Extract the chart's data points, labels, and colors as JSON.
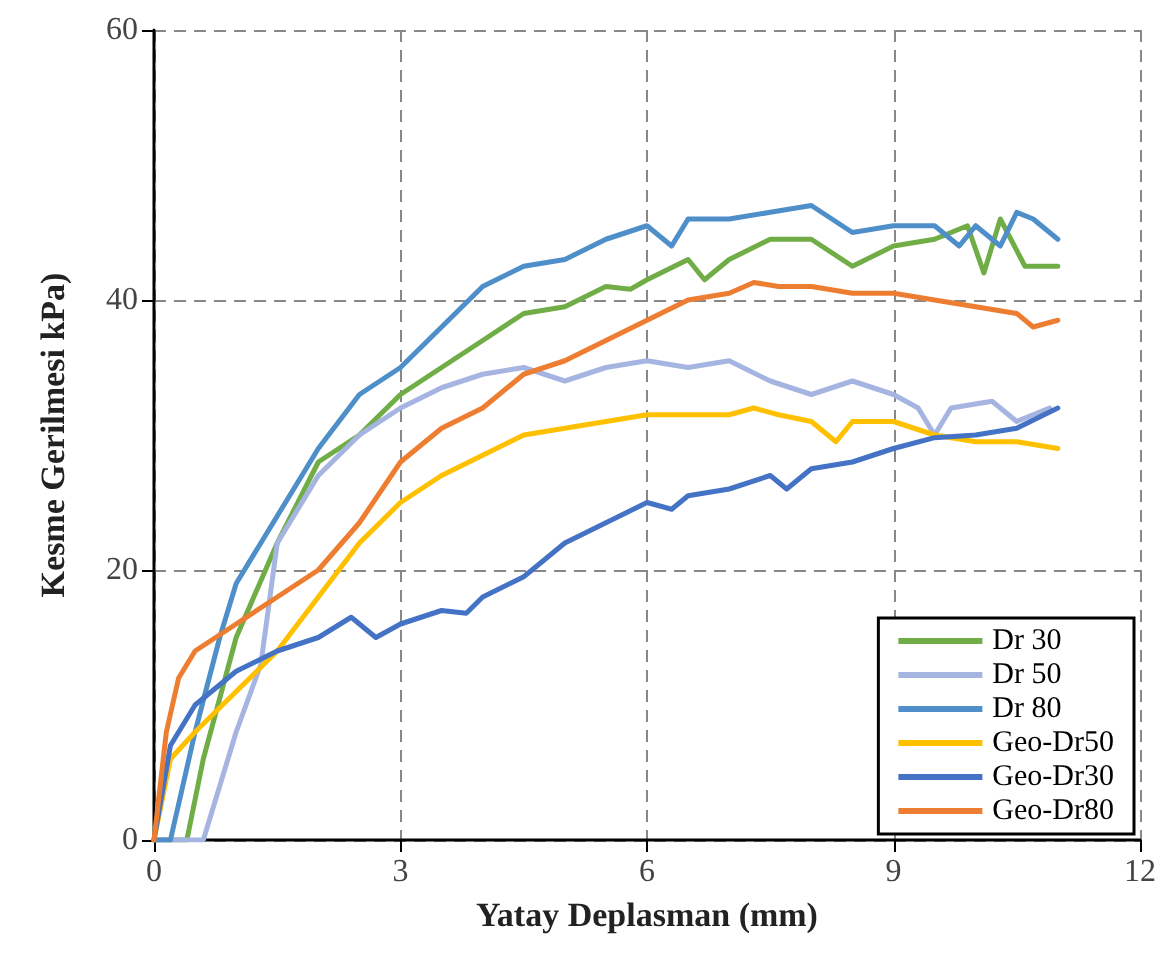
{
  "chart_data": {
    "type": "line",
    "xlabel": "Yatay Deplasman (mm)",
    "ylabel": "Kesme Gerilmesi kPa)",
    "xlim": [
      0,
      12
    ],
    "xticks": [
      0,
      3,
      6,
      9,
      12
    ],
    "ylim": [
      0,
      60
    ],
    "yticks": [
      0,
      20,
      40,
      60
    ],
    "grid": true,
    "legend": "bottom right",
    "marker": "none",
    "line_style": "solid",
    "series": [
      {
        "name": "Dr 30",
        "color": "#70ad47",
        "x": [
          0,
          0.4,
          0.6,
          1,
          1.5,
          2,
          2.5,
          3,
          3.5,
          4,
          4.5,
          5,
          5.5,
          5.8,
          6,
          6.5,
          6.7,
          7,
          7.5,
          8,
          8.5,
          9,
          9.5,
          9.9,
          10.1,
          10.3,
          10.6,
          11
        ],
        "values": [
          0,
          0,
          6,
          15,
          22,
          28,
          30,
          33,
          35,
          37,
          39,
          39.5,
          41,
          40.8,
          41.5,
          43,
          41.5,
          43,
          44.5,
          44.5,
          42.5,
          44,
          44.5,
          45.5,
          42,
          46,
          42.5,
          42.5
        ]
      },
      {
        "name": "Dr 50",
        "color": "#a5b4e0",
        "x": [
          0,
          0.6,
          1,
          1.3,
          1.5,
          2,
          2.5,
          3,
          3.5,
          4,
          4.5,
          5,
          5.5,
          6,
          6.5,
          7,
          7.5,
          8,
          8.5,
          9,
          9.3,
          9.5,
          9.7,
          10.2,
          10.5,
          10.9
        ],
        "values": [
          0,
          0,
          8,
          13,
          22,
          27,
          30,
          32,
          33.5,
          34.5,
          35,
          34,
          35,
          35.5,
          35,
          35.5,
          34,
          33,
          34,
          33,
          32,
          30,
          32,
          32.5,
          31,
          32
        ]
      },
      {
        "name": "Dr 80",
        "color": "#4e8fc9",
        "x": [
          0,
          0.2,
          0.5,
          0.8,
          1,
          1.5,
          2,
          2.5,
          3,
          3.5,
          4,
          4.5,
          5,
          5.5,
          6,
          6.3,
          6.5,
          7,
          7.5,
          8,
          8.5,
          9,
          9.5,
          9.8,
          10,
          10.3,
          10.5,
          10.7,
          11
        ],
        "values": [
          0,
          0,
          8,
          15,
          19,
          24,
          29,
          33,
          35,
          38,
          41,
          42.5,
          43,
          44.5,
          45.5,
          44,
          46,
          46,
          46.5,
          47,
          45,
          45.5,
          45.5,
          44,
          45.5,
          44,
          46.5,
          46,
          44.5
        ]
      },
      {
        "name": "Geo-Dr50",
        "color": "#ffc000",
        "x": [
          0,
          0.2,
          0.5,
          1,
          1.5,
          2,
          2.5,
          3,
          3.5,
          4,
          4.5,
          5,
          5.5,
          6,
          6.5,
          7,
          7.3,
          7.6,
          8,
          8.3,
          8.5,
          9,
          9.5,
          10,
          10.5,
          11
        ],
        "values": [
          0,
          6,
          8,
          11,
          14,
          18,
          22,
          25,
          27,
          28.5,
          30,
          30.5,
          31,
          31.5,
          31.5,
          31.5,
          32,
          31.5,
          31,
          29.5,
          31,
          31,
          30,
          29.5,
          29.5,
          29
        ]
      },
      {
        "name": "Geo-Dr30",
        "color": "#4472c4",
        "x": [
          0,
          0.2,
          0.5,
          1,
          1.5,
          2,
          2.4,
          2.7,
          3,
          3.5,
          3.8,
          4,
          4.5,
          5,
          5.5,
          6,
          6.3,
          6.5,
          7,
          7.5,
          7.7,
          8,
          8.5,
          9,
          9.5,
          10,
          10.5,
          11
        ],
        "values": [
          0,
          7,
          10,
          12.5,
          14,
          15,
          16.5,
          15,
          16,
          17,
          16.8,
          18,
          19.5,
          22,
          23.5,
          25,
          24.5,
          25.5,
          26,
          27,
          26,
          27.5,
          28,
          29,
          29.8,
          30,
          30.5,
          32
        ]
      },
      {
        "name": "Geo-Dr80",
        "color": "#ed7d31",
        "x": [
          0,
          0.15,
          0.3,
          0.5,
          1,
          1.5,
          2,
          2.5,
          3,
          3.5,
          4,
          4.5,
          5,
          5.5,
          6,
          6.5,
          7,
          7.3,
          7.6,
          8,
          8.5,
          9,
          9.5,
          10,
          10.5,
          10.7,
          11
        ],
        "values": [
          0,
          8,
          12,
          14,
          16,
          18,
          20,
          23.5,
          28,
          30.5,
          32,
          34.5,
          35.5,
          37,
          38.5,
          40,
          40.5,
          41.3,
          41,
          41,
          40.5,
          40.5,
          40,
          39.5,
          39,
          38,
          38.5
        ]
      }
    ]
  }
}
